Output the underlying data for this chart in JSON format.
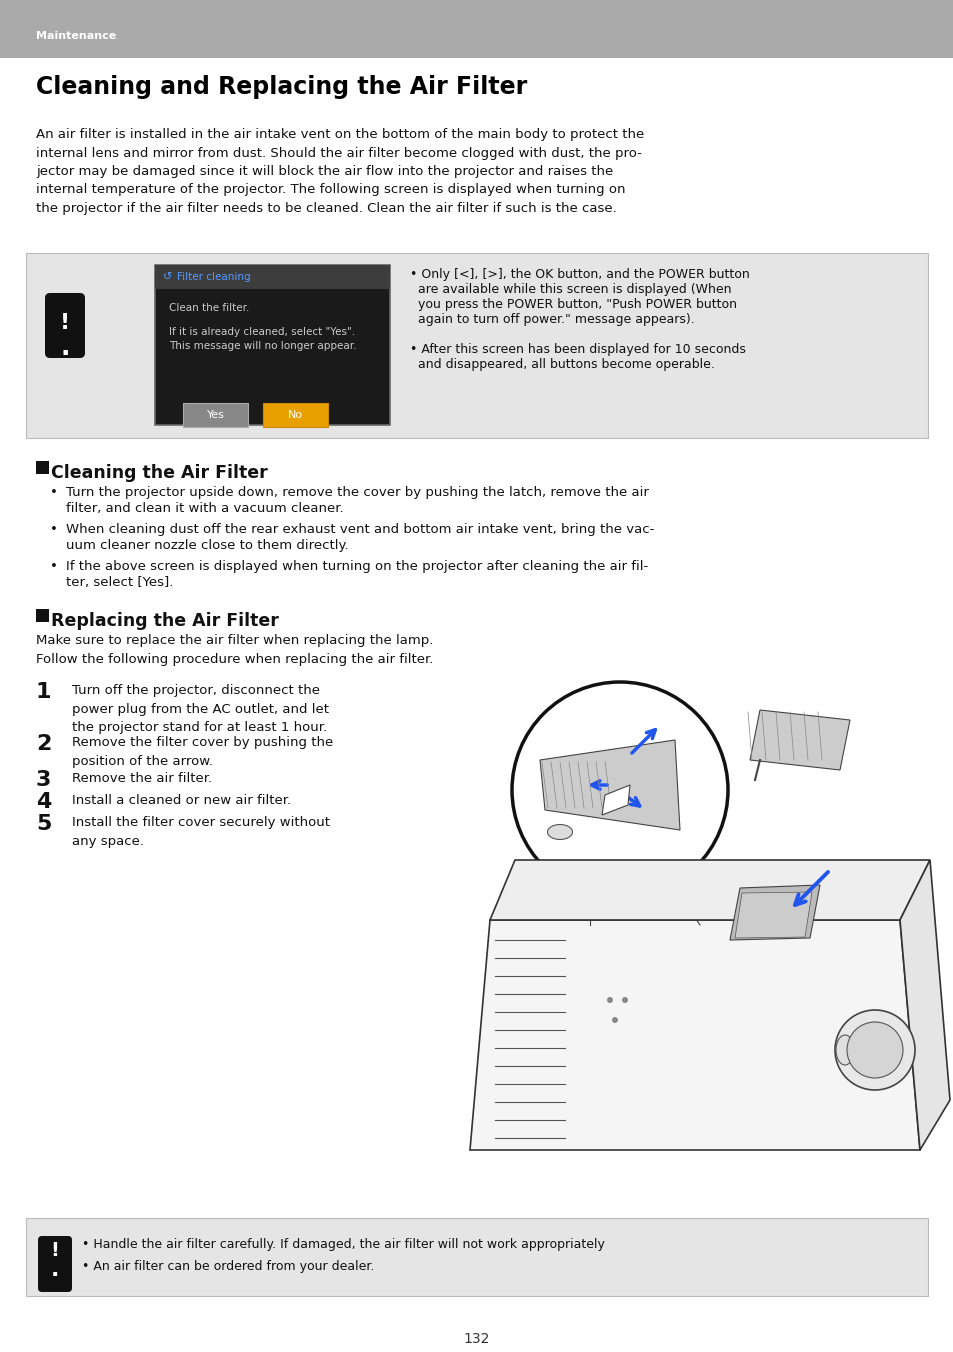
{
  "page_bg": "#ffffff",
  "header_bg": "#aaaaaa",
  "header_text": "Maintenance",
  "header_text_color": "#ffffff",
  "main_title": "Cleaning and Replacing the Air Filter",
  "intro_text": "An air filter is installed in the air intake vent on the bottom of the main body to protect the\ninternal lens and mirror from dust. Should the air filter become clogged with dust, the pro-\njector may be damaged since it will block the air flow into the projector and raises the\ninternal temperature of the projector. The following screen is displayed when turning on\nthe projector if the air filter needs to be cleaned. Clean the air filter if such is the case.",
  "info_box_bg": "#e5e5e5",
  "screen_bg": "#1a1a1a",
  "screen_title_bg": "#3a3a3a",
  "screen_title_text": "Filter cleaning",
  "screen_body1": "Clean the filter.",
  "screen_body2": "If it is already cleaned, select \"Yes\".\nThis message will no longer appear.",
  "btn_yes_bg": "#888888",
  "btn_no_bg": "#e8a000",
  "btn_yes_text": "Yes",
  "btn_no_text": "No",
  "section1_title": "Cleaning the Air Filter",
  "section1_bullets": [
    "Turn the projector upside down, remove the cover by pushing the latch, remove the air\nfilter, and clean it with a vacuum cleaner.",
    "When cleaning dust off the rear exhaust vent and bottom air intake vent, bring the vac-\nuum cleaner nozzle close to them directly.",
    "If the above screen is displayed when turning on the projector after cleaning the air fil-\nter, select [Yes]."
  ],
  "section2_title": "Replacing the Air Filter",
  "section2_intro": "Make sure to replace the air filter when replacing the lamp.\nFollow the following procedure when replacing the air filter.",
  "steps": [
    "Turn off the projector, disconnect the\npower plug from the AC outlet, and let\nthe projector stand for at least 1 hour.",
    "Remove the filter cover by pushing the\nposition of the arrow.",
    "Remove the air filter.",
    "Install a cleaned or new air filter.",
    "Install the filter cover securely without\nany space."
  ],
  "warning_bullets": [
    "Handle the air filter carefully. If damaged, the air filter will not work appropriately",
    "An air filter can be ordered from your dealer."
  ],
  "page_number": "132",
  "font_size_header": 8,
  "font_size_title": 17,
  "font_size_body": 9.5,
  "font_size_section": 12.5,
  "font_size_step_num": 16
}
